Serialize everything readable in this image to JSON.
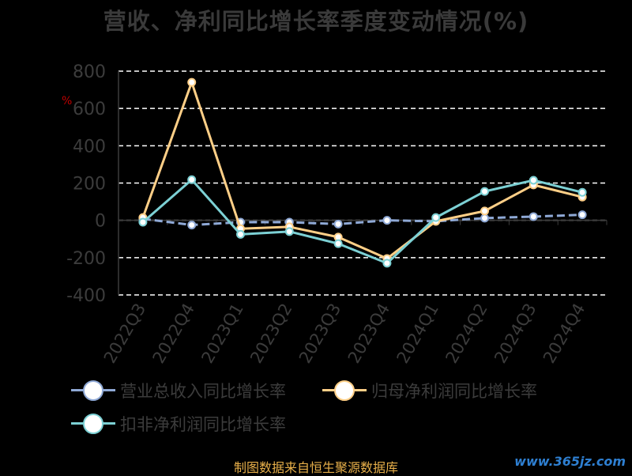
{
  "title": "营收、净利同比增长率季度变动情况(%)",
  "unit_label": "%",
  "source": "制图数据来自恒生聚源数据库",
  "watermark": "www.365jz.com",
  "colors": {
    "background": "#000000",
    "grid": "#ffffff",
    "axis_text": "#3c3c3c",
    "series": [
      "#8fa9d6",
      "#ffcf87",
      "#7cd0d4"
    ]
  },
  "chart_data": {
    "type": "line",
    "title": "营收、净利同比增长率季度变动情况(%)",
    "categories": [
      "2022Q3",
      "2022Q4",
      "2023Q1",
      "2023Q2",
      "2023Q3",
      "2023Q4",
      "2024Q1",
      "2024Q2",
      "2024Q3",
      "2024Q4"
    ],
    "ylim": [
      -400,
      800
    ],
    "yticks": [
      800,
      600,
      400,
      200,
      0,
      -200,
      -400
    ],
    "grid": true,
    "legend_position": "bottom",
    "series": [
      {
        "name": "营业总收入同比增长率",
        "values": [
          8,
          -25,
          -10,
          -10,
          -20,
          0,
          -5,
          12,
          20,
          30
        ]
      },
      {
        "name": "归母净利润同比增长率",
        "values": [
          15,
          740,
          -45,
          -35,
          -90,
          -205,
          -5,
          50,
          190,
          125
        ]
      },
      {
        "name": "扣非净利润同比增长率",
        "values": [
          -10,
          218,
          -75,
          -60,
          -125,
          -230,
          15,
          155,
          215,
          150
        ]
      }
    ]
  }
}
